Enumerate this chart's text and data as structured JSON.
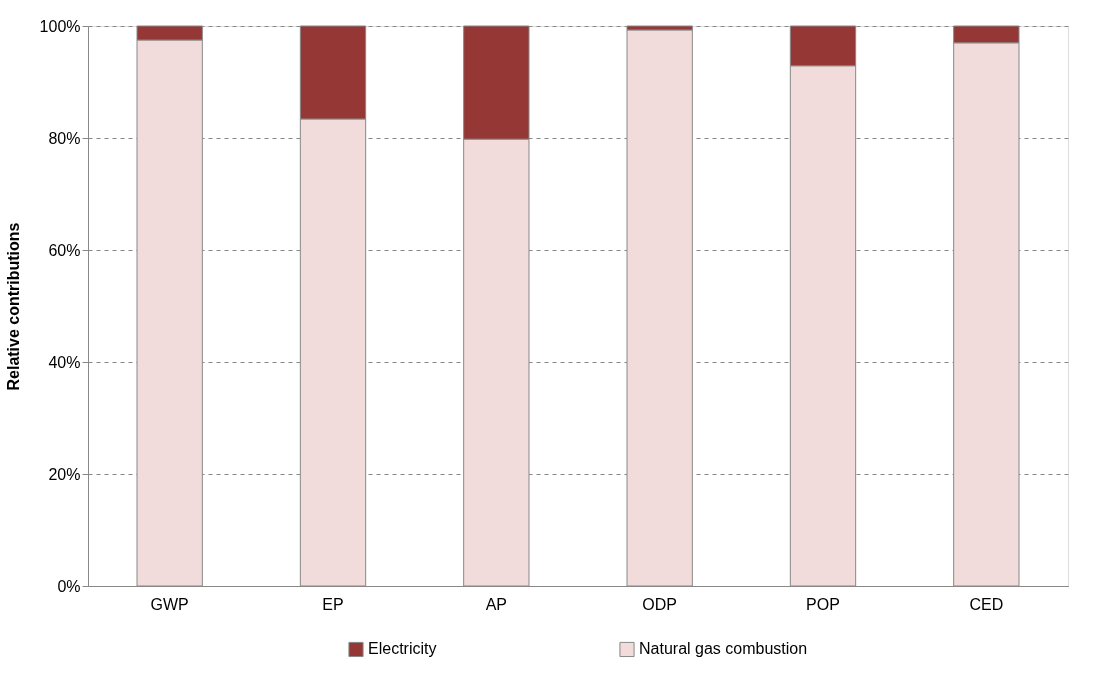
{
  "chart_data": {
    "type": "bar",
    "stacked": true,
    "ylabel": "Relative contributions",
    "categories": [
      "GWP",
      "EP",
      "AP",
      "ODP",
      "POP",
      "CED"
    ],
    "series": [
      {
        "name": "Natural gas combustion",
        "color": "#f2dcdb",
        "values": [
          97.5,
          83.4,
          79.8,
          99.3,
          92.9,
          97.0
        ]
      },
      {
        "name": "Electricity",
        "color": "#953735",
        "values": [
          2.5,
          16.6,
          20.2,
          0.7,
          7.1,
          3.0
        ]
      }
    ],
    "ylim": [
      0,
      100
    ],
    "yticks": [
      {
        "value": 0,
        "label": "0%"
      },
      {
        "value": 20,
        "label": "20%"
      },
      {
        "value": 40,
        "label": "40%"
      },
      {
        "value": 60,
        "label": "60%"
      },
      {
        "value": 80,
        "label": "80%"
      },
      {
        "value": 100,
        "label": "100%"
      }
    ],
    "grid": "y",
    "legend": "bottom"
  }
}
